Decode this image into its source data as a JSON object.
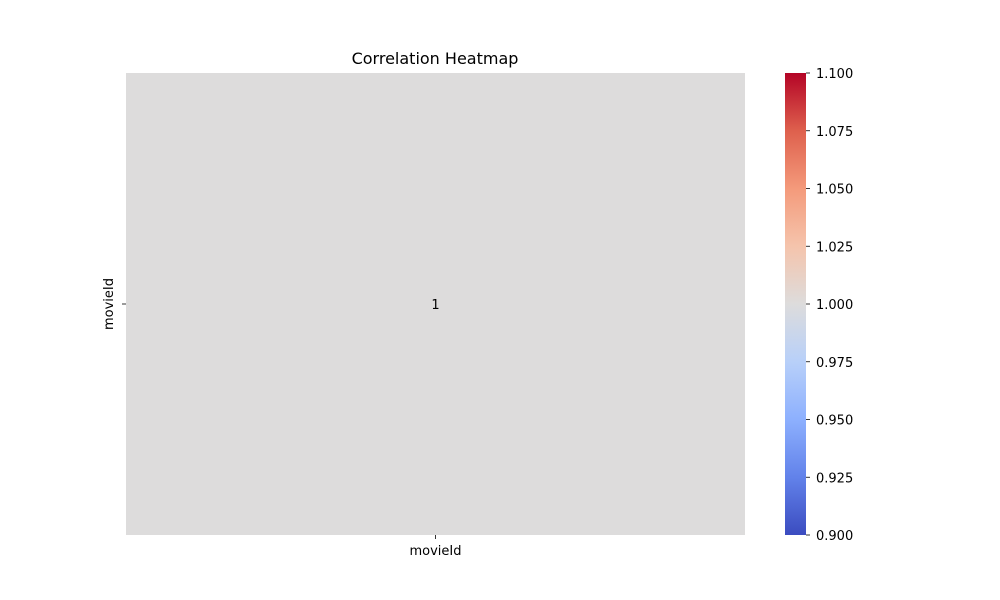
{
  "chart_data": {
    "type": "heatmap",
    "title": "Correlation Heatmap",
    "row_labels": [
      "movieId"
    ],
    "col_labels": [
      "movieId"
    ],
    "values": [
      [
        1.0
      ]
    ],
    "annotations": [
      [
        "1"
      ]
    ],
    "colormap": "coolwarm",
    "cell_color": "#dddcdc",
    "colorbar": {
      "min": 0.9,
      "max": 1.1,
      "ticks": [
        "0.900",
        "0.925",
        "0.950",
        "0.975",
        "1.000",
        "1.025",
        "1.050",
        "1.075",
        "1.100"
      ],
      "tick_values": [
        0.9,
        0.925,
        0.95,
        0.975,
        1.0,
        1.025,
        1.05,
        1.075,
        1.1
      ],
      "stops": [
        "#3b4cc0",
        "#6282ea",
        "#8db0fe",
        "#b8d0f9",
        "#dddcdc",
        "#f5c4ac",
        "#f49a7b",
        "#de604d",
        "#b40426"
      ]
    }
  }
}
